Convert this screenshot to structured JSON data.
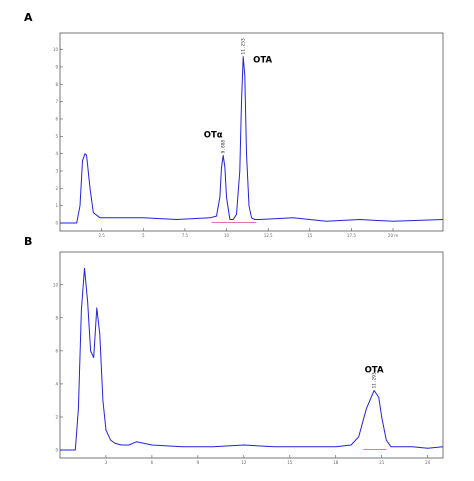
{
  "chart_data": [
    {
      "type": "line",
      "panel": "A",
      "xlabel": "",
      "ylabel": "",
      "xlim": [
        0,
        23
      ],
      "ylim": [
        0,
        10.5
      ],
      "x_ticks": [
        2.5,
        5,
        7.5,
        10,
        12.5,
        15,
        17.5,
        20
      ],
      "x_tick_labels": [
        "2.5",
        "5",
        "7.5",
        "10",
        "12.5",
        "15",
        "17.5",
        "20 m"
      ],
      "y_ticks": [
        0,
        1,
        2,
        3,
        4,
        5,
        6,
        7,
        8,
        9,
        10
      ],
      "y_tick_labels": [
        "0",
        "1",
        "2",
        "3",
        "4",
        "5",
        "6",
        "7",
        "8",
        "9",
        "10"
      ],
      "series": [
        {
          "values_description": "chromatogram",
          "x": [
            0.0,
            1.0,
            1.2,
            1.35,
            1.5,
            1.6,
            1.8,
            2.0,
            2.4,
            3.0,
            5.0,
            7.0,
            9.0,
            9.4,
            9.6,
            9.7,
            9.8,
            9.9,
            10.0,
            10.2,
            10.4,
            10.6,
            10.8,
            10.9,
            11.0,
            11.1,
            11.2,
            11.35,
            11.5,
            11.7,
            12.0,
            14.0,
            16.0,
            18.0,
            20.0,
            23.0
          ],
          "y": [
            0.0,
            0.0,
            1.0,
            3.6,
            4.0,
            3.9,
            2.0,
            0.6,
            0.3,
            0.3,
            0.3,
            0.2,
            0.3,
            0.4,
            1.5,
            3.2,
            3.9,
            3.2,
            1.5,
            0.2,
            0.2,
            0.5,
            3.0,
            7.0,
            9.6,
            8.5,
            4.0,
            1.0,
            0.3,
            0.2,
            0.2,
            0.3,
            0.1,
            0.2,
            0.1,
            0.2
          ]
        }
      ],
      "annotations": [
        {
          "text": "OTα",
          "x": 9.8,
          "y": 3.9,
          "rt_label": "9.888"
        },
        {
          "text": "OTA",
          "x": 11.0,
          "y": 9.6,
          "rt_label": "11.253"
        }
      ]
    },
    {
      "type": "line",
      "panel": "B",
      "xlabel": "",
      "ylabel": "",
      "xlim": [
        0,
        25
      ],
      "ylim": [
        0,
        11.5
      ],
      "x_ticks": [
        3,
        6,
        9,
        12,
        15,
        18,
        21,
        24
      ],
      "x_tick_labels": [
        "3",
        "6",
        "9",
        "12",
        "15",
        "18",
        "21",
        "24"
      ],
      "y_ticks": [
        0,
        2,
        4,
        6,
        8,
        10
      ],
      "y_tick_labels": [
        "0",
        "2",
        "4",
        "6",
        "8",
        "10"
      ],
      "series": [
        {
          "values_description": "chromatogram",
          "x": [
            0.0,
            1.0,
            1.2,
            1.4,
            1.6,
            1.8,
            2.0,
            2.2,
            2.4,
            2.6,
            2.8,
            3.0,
            3.3,
            3.6,
            4.0,
            4.5,
            5.0,
            6.0,
            8.0,
            10.0,
            12.0,
            14.0,
            16.0,
            18.0,
            19.0,
            19.5,
            20.0,
            20.5,
            20.8,
            21.0,
            21.3,
            21.6,
            22.0,
            23.0,
            24.0,
            25.0
          ],
          "y": [
            0.0,
            0.0,
            2.5,
            8.5,
            11.0,
            9.0,
            6.0,
            5.6,
            8.6,
            7.0,
            3.0,
            1.2,
            0.6,
            0.4,
            0.3,
            0.3,
            0.5,
            0.3,
            0.2,
            0.2,
            0.3,
            0.2,
            0.2,
            0.2,
            0.3,
            0.8,
            2.5,
            3.6,
            3.2,
            2.0,
            0.6,
            0.2,
            0.2,
            0.2,
            0.1,
            0.2
          ]
        }
      ],
      "annotations": [
        {
          "text": "OTA",
          "x": 20.5,
          "y": 3.6,
          "rt_label": "11.293"
        }
      ]
    }
  ],
  "panels": {
    "a": {
      "label": "A"
    },
    "b": {
      "label": "B"
    }
  }
}
